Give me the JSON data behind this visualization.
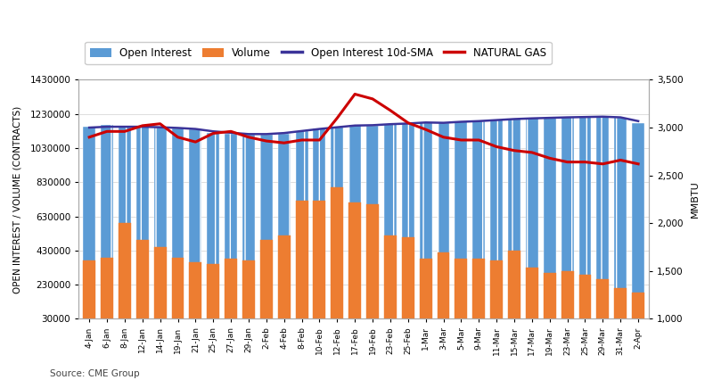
{
  "ylabel_left": "OPEN INTEREST / VOLUME (CONTRACTS)",
  "ylabel_right": "MMBTU",
  "source_text": "Source: CME Group",
  "ylim_left": [
    30000,
    1430000
  ],
  "ylim_right": [
    1000,
    3500
  ],
  "yticks_left": [
    30000,
    230000,
    430000,
    630000,
    830000,
    1030000,
    1230000,
    1430000
  ],
  "yticks_right": [
    1000,
    1500,
    2000,
    2500,
    3000,
    3500
  ],
  "bar_color_oi": "#5B9BD5",
  "bar_color_vol": "#ED7D31",
  "line_color_sma": "#3B3399",
  "line_color_ng": "#CC0000",
  "background_color": "#FFFFFF",
  "dates": [
    "4-Jan",
    "6-Jan",
    "8-Jan",
    "12-Jan",
    "14-Jan",
    "19-Jan",
    "21-Jan",
    "25-Jan",
    "27-Jan",
    "29-Jan",
    "2-Feb",
    "4-Feb",
    "8-Feb",
    "10-Feb",
    "12-Feb",
    "17-Feb",
    "19-Feb",
    "23-Feb",
    "25-Feb",
    "1-Mar",
    "3-Mar",
    "5-Mar",
    "9-Mar",
    "11-Mar",
    "15-Mar",
    "17-Mar",
    "19-Mar",
    "23-Mar",
    "25-Mar",
    "29-Mar",
    "31-Mar",
    "2-Apr"
  ],
  "open_interest": [
    1155000,
    1165000,
    1155000,
    1155000,
    1150000,
    1145000,
    1140000,
    1120000,
    1115000,
    1108000,
    1110000,
    1115000,
    1130000,
    1145000,
    1155000,
    1168000,
    1162000,
    1172000,
    1178000,
    1182000,
    1178000,
    1188000,
    1188000,
    1198000,
    1202000,
    1208000,
    1208000,
    1213000,
    1213000,
    1218000,
    1208000,
    1178000
  ],
  "volume": [
    370000,
    390000,
    590000,
    490000,
    450000,
    390000,
    360000,
    350000,
    380000,
    370000,
    490000,
    520000,
    720000,
    720000,
    800000,
    710000,
    700000,
    520000,
    510000,
    380000,
    420000,
    380000,
    380000,
    370000,
    430000,
    330000,
    300000,
    310000,
    290000,
    260000,
    210000,
    185000
  ],
  "sma": [
    1150000,
    1155000,
    1155000,
    1155000,
    1152000,
    1148000,
    1142000,
    1128000,
    1120000,
    1112000,
    1112000,
    1118000,
    1130000,
    1142000,
    1152000,
    1162000,
    1164000,
    1170000,
    1174000,
    1180000,
    1178000,
    1184000,
    1188000,
    1194000,
    1200000,
    1204000,
    1207000,
    1210000,
    1212000,
    1214000,
    1210000,
    1188000
  ],
  "nat_gas": [
    2900,
    2960,
    2960,
    3020,
    3040,
    2900,
    2850,
    2940,
    2960,
    2900,
    2860,
    2840,
    2870,
    2870,
    3100,
    3350,
    3300,
    3180,
    3050,
    2980,
    2900,
    2870,
    2870,
    2800,
    2760,
    2740,
    2680,
    2640,
    2640,
    2620,
    2660,
    2620
  ]
}
